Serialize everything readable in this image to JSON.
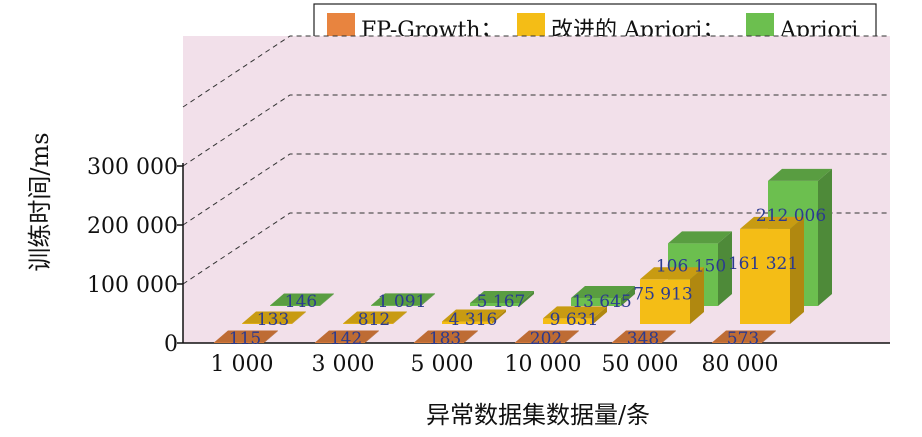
{
  "chart_data": {
    "type": "bar",
    "style": "3d-column",
    "categories": [
      "1 000",
      "3 000",
      "5 000",
      "10 000",
      "50 000",
      "80 000"
    ],
    "series": [
      {
        "name": "FP-Growth",
        "values": [
          115,
          142,
          183,
          202,
          348,
          573
        ],
        "labels": [
          "115",
          "142",
          "183",
          "202",
          "348",
          "573"
        ]
      },
      {
        "name": "改进的 Apriori",
        "values": [
          133,
          812,
          4316,
          9631,
          75913,
          161321
        ],
        "labels": [
          "133",
          "812",
          "4 316",
          "9 631",
          "75 913",
          "161 321"
        ]
      },
      {
        "name": "Apriori",
        "values": [
          146,
          1091,
          5167,
          13645,
          106150,
          212006
        ],
        "labels": [
          "146",
          "1 091",
          "5 167",
          "13 645",
          "106 150",
          "212 006"
        ]
      }
    ],
    "legend_sep": "；",
    "xlabel": "异常数据集数据量/条",
    "ylabel": "训练时间/ms",
    "yticks": [
      {
        "value": 0,
        "label": "0"
      },
      {
        "value": 100000,
        "label": "100 000"
      },
      {
        "value": 200000,
        "label": "200 000"
      },
      {
        "value": 300000,
        "label": "300 000"
      }
    ],
    "ylim": [
      0,
      400000
    ],
    "grid": true,
    "legend_position": "top-right",
    "colors": {
      "FP-Growth": "#e8843f",
      "改进的 Apriori": "#f4bd16",
      "Apriori": "#6cbf4f",
      "wall": "#f2e0ea"
    }
  }
}
